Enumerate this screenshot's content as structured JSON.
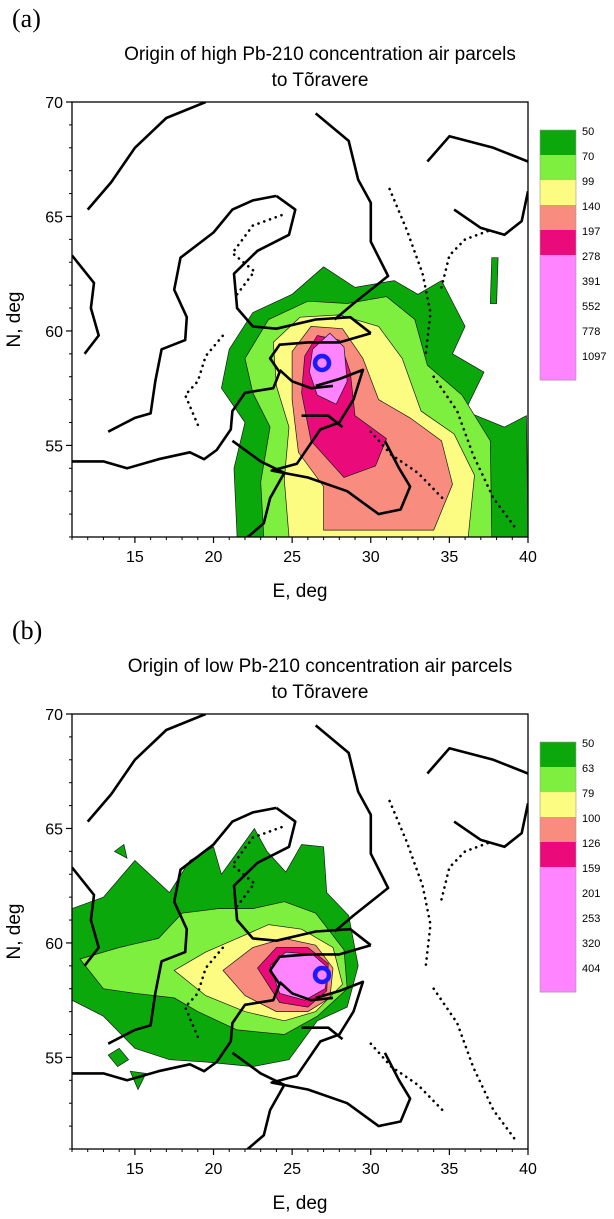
{
  "chart_data": [
    {
      "type": "contour-map",
      "panel_label": "(a)",
      "title_lines": [
        "Origin of high Pb-210 concentration air parcels",
        "to Tõravere"
      ],
      "xlabel": "E, deg",
      "ylabel": "N, deg",
      "xlim": [
        11,
        40
      ],
      "ylim": [
        51,
        70
      ],
      "x_ticks": [
        15,
        20,
        25,
        30,
        35,
        40
      ],
      "y_ticks": [
        55,
        60,
        65,
        70
      ],
      "station": {
        "name": "Tõravere",
        "lon": 26.9,
        "lat": 58.6
      },
      "colorbar": {
        "levels": [
          "50",
          "70",
          "99",
          "140",
          "197",
          "278",
          "391",
          "552",
          "778",
          "1097"
        ],
        "colors": [
          "#0aa80a",
          "#7fef3f",
          "#fcfc82",
          "#f88c7e",
          "#ea0a7a",
          "#ff84ff",
          "#ff84ff",
          "#ff84ff",
          "#ff84ff",
          "#ff84ff"
        ]
      }
    },
    {
      "type": "contour-map",
      "panel_label": "(b)",
      "title_lines": [
        "Origin of low Pb-210 concentration air parcels",
        "to Tõravere"
      ],
      "xlabel": "E, deg",
      "ylabel": "N, deg",
      "xlim": [
        11,
        40
      ],
      "ylim": [
        51,
        70
      ],
      "x_ticks": [
        15,
        20,
        25,
        30,
        35,
        40
      ],
      "y_ticks": [
        55,
        60,
        65,
        70
      ],
      "station": {
        "name": "Tõravere",
        "lon": 26.9,
        "lat": 58.6
      },
      "colorbar": {
        "levels": [
          "50",
          "63",
          "79",
          "100",
          "126",
          "159",
          "201",
          "253",
          "320",
          "404"
        ],
        "colors": [
          "#0aa80a",
          "#7fef3f",
          "#fcfc82",
          "#f88c7e",
          "#ea0a7a",
          "#ff84ff",
          "#ff84ff",
          "#ff84ff",
          "#ff84ff",
          "#ff84ff"
        ]
      }
    }
  ]
}
